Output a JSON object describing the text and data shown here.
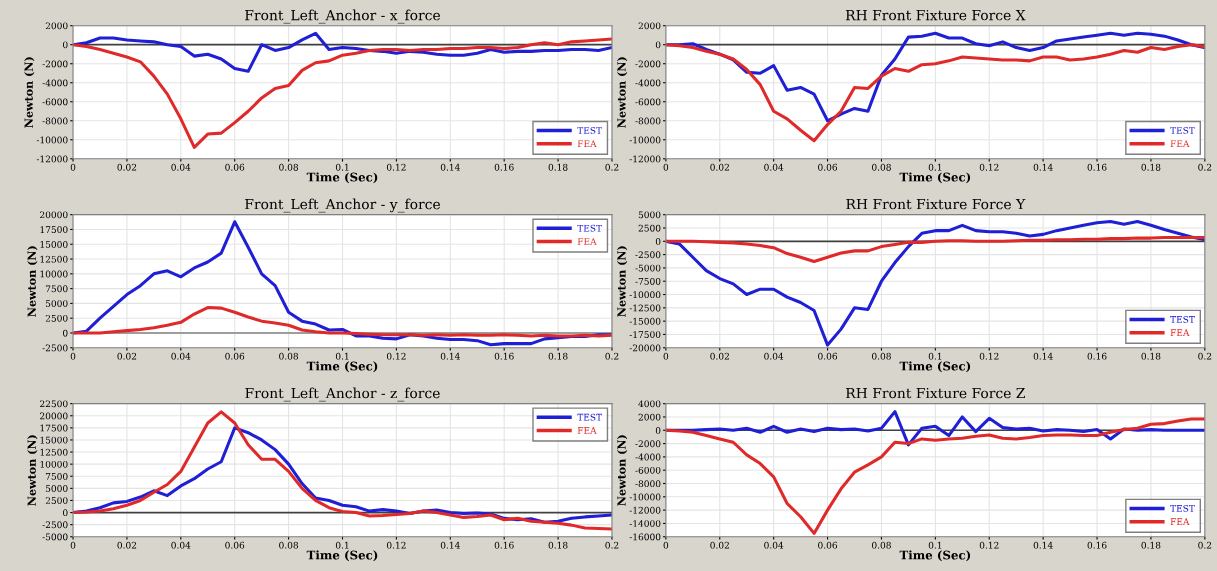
{
  "chart_data": [
    {
      "type": "line",
      "title": "Front_Left_Anchor - x_force",
      "xlabel": "Time (Sec)",
      "ylabel": "Newton (N)",
      "x": [
        0,
        0.005,
        0.01,
        0.015,
        0.02,
        0.025,
        0.03,
        0.035,
        0.04,
        0.045,
        0.05,
        0.055,
        0.06,
        0.065,
        0.07,
        0.075,
        0.08,
        0.085,
        0.09,
        0.095,
        0.1,
        0.105,
        0.11,
        0.115,
        0.12,
        0.125,
        0.13,
        0.135,
        0.14,
        0.145,
        0.15,
        0.155,
        0.16,
        0.165,
        0.17,
        0.175,
        0.18,
        0.185,
        0.19,
        0.195,
        0.2
      ],
      "series": [
        {
          "name": "TEST",
          "color": "#1f1fd6",
          "values": [
            0,
            200,
            700,
            700,
            500,
            400,
            300,
            0,
            -200,
            -1200,
            -1000,
            -1500,
            -2500,
            -2800,
            0,
            -600,
            -300,
            500,
            1200,
            -500,
            -300,
            -400,
            -600,
            -700,
            -900,
            -700,
            -800,
            -1000,
            -1100,
            -1100,
            -900,
            -500,
            -800,
            -700,
            -700,
            -600,
            -600,
            -500,
            -500,
            -600,
            -300
          ]
        },
        {
          "name": "FEA",
          "color": "#e02a2a",
          "values": [
            0,
            -200,
            -500,
            -900,
            -1300,
            -1800,
            -3300,
            -5200,
            -7800,
            -10800,
            -9400,
            -9300,
            -8200,
            -7000,
            -5600,
            -4600,
            -4300,
            -2700,
            -1900,
            -1700,
            -1100,
            -900,
            -600,
            -500,
            -500,
            -600,
            -500,
            -500,
            -400,
            -400,
            -300,
            -300,
            -400,
            -300,
            0,
            200,
            0,
            300,
            400,
            500,
            600
          ]
        }
      ],
      "xlim": [
        0,
        0.2
      ],
      "xticks": [
        0,
        0.02,
        0.04,
        0.06,
        0.08,
        0.1,
        0.12,
        0.14,
        0.16,
        0.18,
        0.2
      ],
      "ylim": [
        -12000,
        2000
      ],
      "yticks": [
        -12000,
        -10000,
        -8000,
        -6000,
        -4000,
        -2000,
        0,
        2000
      ],
      "ref_lines": [
        {
          "axis": "y",
          "value": 0,
          "color": "#404040"
        }
      ],
      "grid": true,
      "legend": "lower right",
      "line_style": "solid",
      "marker": "none"
    },
    {
      "type": "line",
      "title": "RH Front Fixture Force X",
      "xlabel": "Time (Sec)",
      "ylabel": "Newton (N)",
      "x": [
        0,
        0.005,
        0.01,
        0.015,
        0.02,
        0.025,
        0.03,
        0.035,
        0.04,
        0.045,
        0.05,
        0.055,
        0.06,
        0.065,
        0.07,
        0.075,
        0.08,
        0.085,
        0.09,
        0.095,
        0.1,
        0.105,
        0.11,
        0.115,
        0.12,
        0.125,
        0.13,
        0.135,
        0.14,
        0.145,
        0.15,
        0.155,
        0.16,
        0.165,
        0.17,
        0.175,
        0.18,
        0.185,
        0.19,
        0.195,
        0.2
      ],
      "series": [
        {
          "name": "TEST",
          "color": "#1f1fd6",
          "values": [
            0,
            0,
            100,
            -500,
            -1000,
            -1600,
            -2900,
            -3000,
            -2200,
            -4800,
            -4500,
            -5200,
            -8000,
            -7300,
            -6700,
            -7000,
            -3200,
            -1500,
            800,
            900,
            1200,
            700,
            700,
            100,
            -100,
            300,
            -300,
            -600,
            -300,
            400,
            600,
            800,
            1000,
            1200,
            1000,
            1200,
            1100,
            900,
            500,
            0,
            -300
          ]
        },
        {
          "name": "FEA",
          "color": "#e02a2a",
          "values": [
            0,
            -100,
            -300,
            -700,
            -1000,
            -1500,
            -2600,
            -4200,
            -7000,
            -7800,
            -9000,
            -10100,
            -8400,
            -7000,
            -4500,
            -4600,
            -3300,
            -2500,
            -2800,
            -2100,
            -2000,
            -1700,
            -1300,
            -1400,
            -1500,
            -1600,
            -1600,
            -1700,
            -1300,
            -1300,
            -1600,
            -1500,
            -1300,
            -1000,
            -600,
            -800,
            -300,
            -500,
            -200,
            0,
            -200
          ]
        }
      ],
      "xlim": [
        0,
        0.2
      ],
      "xticks": [
        0,
        0.02,
        0.04,
        0.06,
        0.08,
        0.1,
        0.12,
        0.14,
        0.16,
        0.18,
        0.2
      ],
      "ylim": [
        -12000,
        2000
      ],
      "yticks": [
        -12000,
        -10000,
        -8000,
        -6000,
        -4000,
        -2000,
        0,
        2000
      ],
      "ref_lines": [
        {
          "axis": "y",
          "value": 0,
          "color": "#404040"
        }
      ],
      "grid": true,
      "legend": "lower right",
      "line_style": "solid",
      "marker": "none"
    },
    {
      "type": "line",
      "title": "Front_Left_Anchor - y_force",
      "xlabel": "Time (Sec)",
      "ylabel": "Newton (N)",
      "x": [
        0,
        0.005,
        0.01,
        0.015,
        0.02,
        0.025,
        0.03,
        0.035,
        0.04,
        0.045,
        0.05,
        0.055,
        0.06,
        0.065,
        0.07,
        0.075,
        0.08,
        0.085,
        0.09,
        0.095,
        0.1,
        0.105,
        0.11,
        0.115,
        0.12,
        0.125,
        0.13,
        0.135,
        0.14,
        0.145,
        0.15,
        0.155,
        0.16,
        0.165,
        0.17,
        0.175,
        0.18,
        0.185,
        0.19,
        0.195,
        0.2
      ],
      "series": [
        {
          "name": "TEST",
          "color": "#1f1fd6",
          "values": [
            0,
            300,
            2500,
            4500,
            6500,
            8000,
            10000,
            10500,
            9500,
            11000,
            12000,
            13500,
            18800,
            14500,
            10000,
            8000,
            3500,
            2000,
            1500,
            500,
            600,
            -500,
            -500,
            -900,
            -1000,
            -300,
            -500,
            -900,
            -1100,
            -1100,
            -1300,
            -2000,
            -1800,
            -1800,
            -1800,
            -1000,
            -800,
            -600,
            -600,
            -300,
            -300
          ]
        },
        {
          "name": "FEA",
          "color": "#e02a2a",
          "values": [
            0,
            0,
            0,
            200,
            400,
            600,
            900,
            1300,
            1800,
            3200,
            4300,
            4200,
            3500,
            2700,
            2000,
            1700,
            1300,
            500,
            200,
            0,
            0,
            -100,
            -200,
            -300,
            -300,
            -300,
            -400,
            -300,
            -400,
            -300,
            -400,
            -400,
            -300,
            -400,
            -500,
            -400,
            -500,
            -500,
            -400,
            -500,
            -400
          ]
        }
      ],
      "xlim": [
        0,
        0.2
      ],
      "xticks": [
        0,
        0.02,
        0.04,
        0.06,
        0.08,
        0.1,
        0.12,
        0.14,
        0.16,
        0.18,
        0.2
      ],
      "ylim": [
        -2500,
        20000
      ],
      "yticks": [
        -2500,
        0,
        2500,
        5000,
        7500,
        10000,
        12500,
        15000,
        17500,
        20000
      ],
      "ref_lines": [
        {
          "axis": "y",
          "value": 0,
          "color": "#808080"
        }
      ],
      "grid": true,
      "legend": "upper right",
      "line_style": "solid",
      "marker": "none"
    },
    {
      "type": "line",
      "title": "RH Front Fixture Force Y",
      "xlabel": "Time (Sec)",
      "ylabel": "Newton (N)",
      "x": [
        0,
        0.005,
        0.01,
        0.015,
        0.02,
        0.025,
        0.03,
        0.035,
        0.04,
        0.045,
        0.05,
        0.055,
        0.06,
        0.065,
        0.07,
        0.075,
        0.08,
        0.085,
        0.09,
        0.095,
        0.1,
        0.105,
        0.11,
        0.115,
        0.12,
        0.125,
        0.13,
        0.135,
        0.14,
        0.145,
        0.15,
        0.155,
        0.16,
        0.165,
        0.17,
        0.175,
        0.18,
        0.185,
        0.19,
        0.195,
        0.2
      ],
      "series": [
        {
          "name": "TEST",
          "color": "#1f1fd6",
          "values": [
            0,
            -500,
            -3000,
            -5500,
            -7000,
            -8000,
            -10000,
            -9000,
            -9000,
            -10500,
            -11500,
            -13000,
            -19500,
            -16500,
            -12500,
            -12800,
            -7500,
            -4000,
            -1000,
            1500,
            2000,
            2000,
            3000,
            2000,
            1800,
            1800,
            1500,
            1000,
            1300,
            2000,
            2500,
            3000,
            3500,
            3700,
            3200,
            3700,
            3000,
            2200,
            1500,
            800,
            300
          ]
        },
        {
          "name": "FEA",
          "color": "#e02a2a",
          "values": [
            0,
            0,
            0,
            -100,
            -200,
            -300,
            -500,
            -800,
            -1200,
            -2300,
            -3000,
            -3800,
            -3000,
            -2200,
            -1800,
            -1800,
            -1000,
            -600,
            -200,
            -200,
            0,
            100,
            100,
            0,
            0,
            0,
            100,
            200,
            200,
            300,
            300,
            400,
            400,
            500,
            500,
            600,
            600,
            700,
            700,
            700,
            700
          ]
        }
      ],
      "xlim": [
        0,
        0.2
      ],
      "xticks": [
        0,
        0.02,
        0.04,
        0.06,
        0.08,
        0.1,
        0.12,
        0.14,
        0.16,
        0.18,
        0.2
      ],
      "ylim": [
        -20000,
        5000
      ],
      "yticks": [
        -20000,
        -17500,
        -15000,
        -12500,
        -10000,
        -7500,
        -5000,
        -2500,
        0,
        2500,
        5000
      ],
      "ref_lines": [
        {
          "axis": "y",
          "value": 0,
          "color": "#404040"
        }
      ],
      "grid": true,
      "legend": "lower right",
      "line_style": "solid",
      "marker": "none"
    },
    {
      "type": "line",
      "title": "Front_Left_Anchor - z_force",
      "xlabel": "Time (Sec)",
      "ylabel": "Newton (N)",
      "x": [
        0,
        0.005,
        0.01,
        0.015,
        0.02,
        0.025,
        0.03,
        0.035,
        0.04,
        0.045,
        0.05,
        0.055,
        0.06,
        0.065,
        0.07,
        0.075,
        0.08,
        0.085,
        0.09,
        0.095,
        0.1,
        0.105,
        0.11,
        0.115,
        0.12,
        0.125,
        0.13,
        0.135,
        0.14,
        0.145,
        0.15,
        0.155,
        0.16,
        0.165,
        0.17,
        0.175,
        0.18,
        0.185,
        0.19,
        0.195,
        0.2
      ],
      "series": [
        {
          "name": "TEST",
          "color": "#1f1fd6",
          "values": [
            0,
            300,
            1000,
            2000,
            2300,
            3200,
            4500,
            3500,
            5500,
            7000,
            9000,
            10500,
            17500,
            16500,
            15000,
            13000,
            10000,
            6000,
            3000,
            2500,
            1500,
            1200,
            300,
            600,
            300,
            -200,
            300,
            500,
            0,
            -200,
            -100,
            -300,
            -1200,
            -1500,
            -1300,
            -2000,
            -1800,
            -1200,
            -900,
            -700,
            -500
          ]
        },
        {
          "name": "FEA",
          "color": "#e02a2a",
          "values": [
            0,
            100,
            300,
            800,
            1500,
            2500,
            4200,
            5800,
            8500,
            13500,
            18500,
            20800,
            18500,
            14000,
            11000,
            11000,
            8500,
            5000,
            2500,
            1000,
            200,
            0,
            -700,
            -600,
            -400,
            -200,
            300,
            0,
            -500,
            -1000,
            -800,
            -500,
            -1500,
            -1200,
            -1800,
            -2000,
            -2200,
            -2600,
            -3200,
            -3300,
            -3400
          ]
        }
      ],
      "xlim": [
        0,
        0.2
      ],
      "xticks": [
        0,
        0.02,
        0.04,
        0.06,
        0.08,
        0.1,
        0.12,
        0.14,
        0.16,
        0.18,
        0.2
      ],
      "ylim": [
        -5000,
        22500
      ],
      "yticks": [
        -5000,
        -2500,
        0,
        2500,
        5000,
        7500,
        10000,
        12500,
        15000,
        17500,
        20000,
        22500
      ],
      "ref_lines": [
        {
          "axis": "y",
          "value": 0,
          "color": "#404040"
        }
      ],
      "grid": true,
      "legend": "upper right",
      "line_style": "solid",
      "marker": "none"
    },
    {
      "type": "line",
      "title": "RH Front Fixture Force Z",
      "xlabel": "Time (Sec)",
      "ylabel": "Newton (N)",
      "x": [
        0,
        0.005,
        0.01,
        0.015,
        0.02,
        0.025,
        0.03,
        0.035,
        0.04,
        0.045,
        0.05,
        0.055,
        0.06,
        0.065,
        0.07,
        0.075,
        0.08,
        0.085,
        0.09,
        0.095,
        0.1,
        0.105,
        0.11,
        0.115,
        0.12,
        0.125,
        0.13,
        0.135,
        0.14,
        0.145,
        0.15,
        0.155,
        0.16,
        0.165,
        0.17,
        0.175,
        0.18,
        0.185,
        0.19,
        0.195,
        0.2
      ],
      "series": [
        {
          "name": "TEST",
          "color": "#1f1fd6",
          "values": [
            0,
            0,
            0,
            100,
            200,
            0,
            300,
            -300,
            600,
            -300,
            200,
            -200,
            300,
            100,
            200,
            -100,
            300,
            2800,
            -2200,
            300,
            600,
            -800,
            2000,
            -200,
            1800,
            400,
            200,
            300,
            -100,
            100,
            0,
            -200,
            100,
            -1300,
            200,
            0,
            100,
            0,
            0,
            0,
            0
          ]
        },
        {
          "name": "FEA",
          "color": "#e02a2a",
          "values": [
            0,
            -100,
            -300,
            -800,
            -1300,
            -1800,
            -3700,
            -5000,
            -7000,
            -11000,
            -13000,
            -15500,
            -12000,
            -8800,
            -6300,
            -5200,
            -4000,
            -1800,
            -2000,
            -1300,
            -1500,
            -1300,
            -1200,
            -900,
            -700,
            -1200,
            -1300,
            -1100,
            -800,
            -700,
            -700,
            -800,
            -800,
            -300,
            100,
            300,
            900,
            1000,
            1400,
            1700,
            1700
          ]
        }
      ],
      "xlim": [
        0,
        0.2
      ],
      "xticks": [
        0,
        0.02,
        0.04,
        0.06,
        0.08,
        0.1,
        0.12,
        0.14,
        0.16,
        0.18,
        0.2
      ],
      "ylim": [
        -16000,
        4000
      ],
      "yticks": [
        -16000,
        -14000,
        -12000,
        -10000,
        -8000,
        -6000,
        -4000,
        -2000,
        0,
        2000,
        4000
      ],
      "ref_lines": [
        {
          "axis": "y",
          "value": 0,
          "color": "#404040"
        }
      ],
      "grid": true,
      "legend": "lower right",
      "line_style": "solid",
      "marker": "none"
    }
  ]
}
